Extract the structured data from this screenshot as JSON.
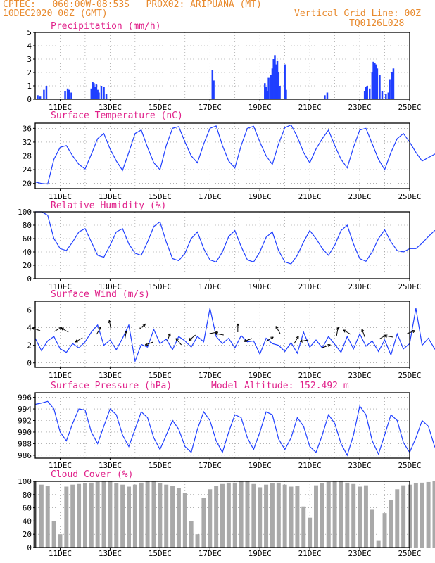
{
  "header": {
    "line1": "CPTEC:   060:00W-08:53S   PROX02: ARIPUANA (MT)",
    "line2_left": "10DEC2020 00Z (GMT)",
    "line2_right": "Vertical Grid Line: 00Z",
    "line3_right": "TQ0126L028"
  },
  "x_ticks": [
    "11DEC",
    "13DEC",
    "15DEC",
    "17DEC",
    "19DEC",
    "21DEC",
    "23DEC",
    "25DEC"
  ],
  "colors": {
    "header": "#e88a2e",
    "title": "#e0218a",
    "line": "#1f3fff",
    "cloud": "#a9a9a9",
    "arrow": "#000000",
    "grid": "#888888"
  },
  "chart_data": [
    {
      "type": "bar",
      "title": "Precipitation (mm/h)",
      "ylim": [
        0,
        5
      ],
      "yticks": [
        0,
        1,
        2,
        3,
        4,
        5
      ],
      "x_unit": "days since 10DEC 00Z",
      "x": [
        0.1,
        0.2,
        0.35,
        0.45,
        1.2,
        1.3,
        1.35,
        1.45,
        2.25,
        2.3,
        2.35,
        2.4,
        2.45,
        2.5,
        2.55,
        2.65,
        2.75,
        2.85,
        7.1,
        7.15,
        9.2,
        9.25,
        9.3,
        9.35,
        9.45,
        9.5,
        9.55,
        9.6,
        9.65,
        9.7,
        9.75,
        9.8,
        10.0,
        10.05,
        11.6,
        11.7,
        13.2,
        13.25,
        13.3,
        13.4,
        13.5,
        13.55,
        13.6,
        13.65,
        13.7,
        13.8,
        13.9,
        14.05,
        14.15,
        14.2,
        14.3,
        14.35
      ],
      "values": [
        0.3,
        0.2,
        0.7,
        1.0,
        0.6,
        0.8,
        0.7,
        0.5,
        0.8,
        1.3,
        1.2,
        0.9,
        1.1,
        0.7,
        0.5,
        1.0,
        0.9,
        0.4,
        2.2,
        1.4,
        1.2,
        0.9,
        0.6,
        1.6,
        1.8,
        2.3,
        3.0,
        3.3,
        2.6,
        2.9,
        2.0,
        1.0,
        2.6,
        0.7,
        0.3,
        0.5,
        0.6,
        0.9,
        1.0,
        0.8,
        2.0,
        2.8,
        2.7,
        2.6,
        2.3,
        1.8,
        0.6,
        0.4,
        0.5,
        1.5,
        2.0,
        2.3
      ]
    },
    {
      "type": "line",
      "title": "Surface Temperature (nC)",
      "ylim": [
        18.5,
        37.5
      ],
      "yticks": [
        20,
        24,
        28,
        32,
        36
      ],
      "x_step": 0.25,
      "values": [
        20.4,
        20.0,
        19.8,
        27.0,
        30.5,
        31.0,
        28.0,
        25.5,
        24.2,
        28.5,
        33.0,
        34.5,
        30.0,
        26.5,
        23.8,
        29.0,
        34.5,
        35.5,
        30.5,
        26.0,
        24.0,
        31.0,
        36.0,
        36.5,
        32.0,
        28.0,
        26.0,
        31.5,
        36.0,
        36.7,
        31.0,
        26.5,
        24.5,
        31.0,
        36.0,
        36.6,
        32.0,
        28.0,
        25.5,
        31.5,
        36.2,
        37.0,
        33.5,
        29.0,
        26.0,
        30.0,
        33.0,
        35.5,
        31.0,
        27.0,
        24.5,
        30.5,
        35.5,
        36.0,
        31.5,
        27.0,
        24.0,
        29.0,
        33.0,
        34.5,
        32.0,
        29.0,
        26.5,
        27.5,
        28.5,
        29.5,
        31.0,
        27.5,
        24.5,
        30.0,
        35.0,
        36.0,
        31.5,
        27.0,
        24.0,
        30.5,
        33.5,
        33.0,
        29.5,
        26.0,
        23.8,
        28.5,
        31.5,
        31.5,
        28.0,
        24.5,
        24.0,
        28.0,
        32.0,
        31.0,
        29.0,
        27.0,
        27.2,
        27.5,
        28.0,
        27.2,
        26.8
      ]
    },
    {
      "type": "line",
      "title": "Relative Humidity (%)",
      "ylim": [
        0,
        100
      ],
      "yticks": [
        0,
        20,
        40,
        60,
        80,
        100
      ],
      "x_step": 0.25,
      "values": [
        100,
        100,
        95,
        60,
        45,
        42,
        55,
        70,
        75,
        55,
        35,
        32,
        50,
        70,
        75,
        52,
        38,
        35,
        55,
        78,
        85,
        55,
        30,
        27,
        38,
        60,
        70,
        45,
        28,
        25,
        40,
        63,
        72,
        48,
        28,
        25,
        40,
        62,
        70,
        42,
        25,
        22,
        35,
        55,
        72,
        60,
        45,
        35,
        50,
        72,
        80,
        52,
        30,
        26,
        40,
        60,
        73,
        55,
        42,
        40,
        45,
        45,
        53,
        63,
        72,
        70,
        62,
        52,
        40,
        35,
        48,
        70,
        85,
        58,
        33,
        28,
        40,
        55,
        72,
        73,
        58,
        45,
        35,
        40,
        55,
        60,
        70,
        72,
        60,
        65,
        85,
        87,
        90,
        75,
        70,
        90,
        92
      ]
    },
    {
      "type": "line",
      "title": "Surface Wind (m/s)",
      "ylim": [
        -0.5,
        7
      ],
      "yticks": [
        0,
        2,
        4,
        6
      ],
      "x_step": 0.25,
      "values": [
        2.8,
        1.4,
        2.5,
        3.0,
        1.6,
        1.2,
        2.2,
        1.7,
        2.4,
        3.5,
        4.3,
        2.0,
        2.6,
        1.5,
        2.8,
        4.3,
        0.2,
        2.1,
        1.8,
        3.8,
        2.2,
        2.7,
        1.5,
        3.0,
        2.5,
        1.8,
        3.0,
        2.4,
        6.2,
        3.0,
        2.2,
        2.8,
        1.7,
        3.1,
        2.4,
        2.5,
        1.0,
        2.8,
        2.2,
        2.0,
        1.3,
        2.3,
        1.1,
        3.5,
        1.8,
        2.6,
        1.7,
        3.0,
        2.1,
        1.2,
        3.0,
        1.6,
        3.3,
        1.9,
        2.5,
        1.3,
        2.6,
        0.9,
        3.3,
        1.6,
        2.2,
        6.2,
        2.0,
        2.8,
        1.6,
        3.0,
        2.2,
        1.5,
        3.3,
        1.9,
        2.5,
        1.2,
        2.6,
        3.0,
        1.4,
        2.6,
        1.8,
        2.5,
        3.2,
        1.9,
        2.4,
        3.0,
        1.1,
        2.8,
        2.2,
        1.8,
        3.0,
        2.0,
        2.6,
        1.7,
        2.5,
        1.2,
        2.2,
        1.8,
        0.4
      ],
      "arrow_count": 27
    },
    {
      "type": "line",
      "title": "Surface Pressure (hPa)",
      "annotation": "Model Altitude: 152.492 m",
      "ylim": [
        985.5,
        996.8
      ],
      "yticks": [
        986,
        988,
        990,
        992,
        994,
        996
      ],
      "x_step": 0.25,
      "values": [
        994.8,
        995.0,
        995.3,
        994.0,
        990.0,
        988.5,
        991.5,
        994.0,
        993.8,
        990.0,
        988.0,
        991.0,
        994.0,
        993.0,
        989.5,
        987.5,
        990.5,
        993.5,
        992.5,
        989.0,
        987.0,
        989.5,
        992.0,
        990.5,
        987.5,
        986.5,
        990.5,
        993.5,
        992.0,
        988.5,
        986.5,
        990.0,
        993.0,
        992.5,
        989.0,
        987.0,
        990.0,
        993.5,
        993.0,
        988.8,
        987.0,
        989.0,
        992.5,
        991.0,
        987.5,
        986.5,
        989.5,
        993.0,
        991.5,
        988.0,
        986.0,
        989.5,
        994.5,
        993.0,
        988.5,
        986.2,
        989.5,
        993.0,
        992.0,
        988.2,
        986.5,
        989.0,
        992.0,
        991.0,
        987.5,
        985.8,
        988.5,
        991.5,
        990.5,
        987.0,
        985.5,
        988.0,
        991.5,
        991.0,
        987.5,
        986.2,
        988.5,
        990.5,
        990.0,
        986.8,
        985.5,
        988.0,
        990.0,
        989.5,
        986.5,
        985.2,
        987.5,
        990.5,
        990.0,
        986.8,
        985.2,
        987.0,
        989.0
      ]
    },
    {
      "type": "area",
      "title": "Cloud Cover (%)",
      "ylim": [
        0,
        100
      ],
      "yticks": [
        0,
        20,
        40,
        60,
        80,
        100
      ],
      "x_step": 0.25,
      "values": [
        100,
        95,
        93,
        40,
        20,
        92,
        95,
        96,
        97,
        98,
        99,
        100,
        100,
        97,
        95,
        92,
        95,
        98,
        100,
        100,
        97,
        95,
        93,
        90,
        82,
        40,
        20,
        75,
        88,
        93,
        96,
        98,
        98,
        100,
        100,
        96,
        91,
        95,
        97,
        98,
        95,
        92,
        93,
        62,
        45,
        94,
        97,
        99,
        100,
        100,
        98,
        96,
        92,
        94,
        58,
        10,
        52,
        72,
        88,
        94,
        95,
        97,
        98,
        99,
        100,
        100,
        99,
        97,
        95,
        97,
        98,
        99,
        100,
        100,
        100,
        100,
        98,
        95,
        96,
        98,
        99,
        100,
        100,
        100,
        99,
        97,
        98,
        100,
        100,
        100,
        100,
        100,
        99,
        100,
        100
      ]
    }
  ]
}
